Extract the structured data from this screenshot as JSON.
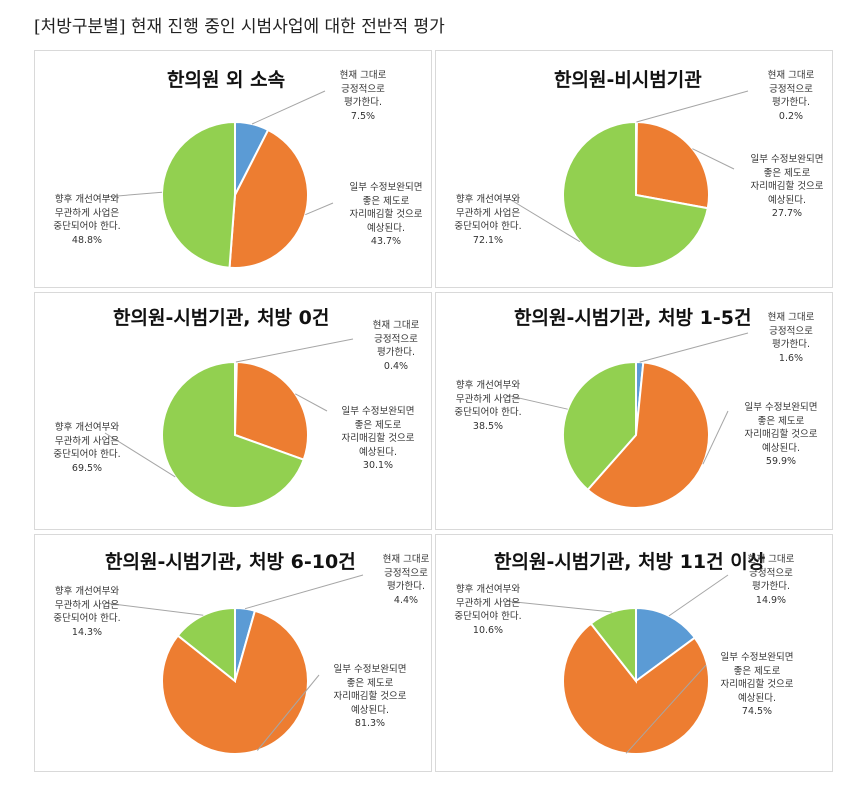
{
  "heading": "[처방구분별] 현재 진행 중인 시범사업에 대한 전반적 평가",
  "colors": {
    "positive": "#5b9bd5",
    "improve": "#ed7d31",
    "discontinue": "#92d050"
  },
  "chart_data": [
    {
      "type": "pie",
      "title": "한의원 외 소속",
      "slices": [
        {
          "label": "현재 그대로 긍정적으로 평가한다.",
          "value": 7.5,
          "pct": "7.5%"
        },
        {
          "label": "일부 수정보완되면 좋은 제도로 자리매김할 것으로 예상된다.",
          "value": 43.7,
          "pct": "43.7%"
        },
        {
          "label": "향후 개선여부와 무관하게 사업은 중단되어야 한다.",
          "value": 48.8,
          "pct": "48.8%"
        }
      ]
    },
    {
      "type": "pie",
      "title": "한의원-비시범기관",
      "slices": [
        {
          "label": "현재 그대로 긍정적으로 평가한다.",
          "value": 0.2,
          "pct": "0.2%"
        },
        {
          "label": "일부 수정보완되면 좋은 제도로 자리매김할 것으로 예상된다.",
          "value": 27.7,
          "pct": "27.7%"
        },
        {
          "label": "향후 개선여부와 무관하게 사업은 중단되어야 한다.",
          "value": 72.1,
          "pct": "72.1%"
        }
      ]
    },
    {
      "type": "pie",
      "title": "한의원-시범기관, 처방 0건",
      "slices": [
        {
          "label": "현재 그대로 긍정적으로 평가한다.",
          "value": 0.4,
          "pct": "0.4%"
        },
        {
          "label": "일부 수정보완되면 좋은 제도로 자리매김할 것으로 예상된다.",
          "value": 30.1,
          "pct": "30.1%"
        },
        {
          "label": "향후 개선여부와 무관하게 사업은 중단되어야 한다.",
          "value": 69.5,
          "pct": "69.5%"
        }
      ]
    },
    {
      "type": "pie",
      "title": "한의원-시범기관, 처방 1-5건",
      "slices": [
        {
          "label": "현재 그대로 긍정적으로 평가한다.",
          "value": 1.6,
          "pct": "1.6%"
        },
        {
          "label": "일부 수정보완되면 좋은 제도로 자리매김할 것으로 예상된다.",
          "value": 59.9,
          "pct": "59.9%"
        },
        {
          "label": "향후 개선여부와 무관하게 사업은 중단되어야 한다.",
          "value": 38.5,
          "pct": "38.5%"
        }
      ]
    },
    {
      "type": "pie",
      "title": "한의원-시범기관, 처방 6-10건",
      "slices": [
        {
          "label": "현재 그대로 긍정적으로 평가한다.",
          "value": 4.4,
          "pct": "4.4%"
        },
        {
          "label": "일부 수정보완되면 좋은 제도로 자리매김할 것으로 예상된다.",
          "value": 81.3,
          "pct": "81.3%"
        },
        {
          "label": "향후 개선여부와 무관하게 사업은 중단되어야 한다.",
          "value": 14.3,
          "pct": "14.3%"
        }
      ]
    },
    {
      "type": "pie",
      "title": "한의원-시범기관, 처방 11건 이상",
      "slices": [
        {
          "label": "현재 그대로 긍정적으로 평가한다.",
          "value": 14.9,
          "pct": "14.9%"
        },
        {
          "label": "일부 수정보완되면 좋은 제도로 자리매김할 것으로 예상된다.",
          "value": 74.5,
          "pct": "74.5%"
        },
        {
          "label": "향후 개선여부와 무관하게 사업은 중단되어야 한다.",
          "value": 10.6,
          "pct": "10.6%"
        }
      ]
    }
  ]
}
